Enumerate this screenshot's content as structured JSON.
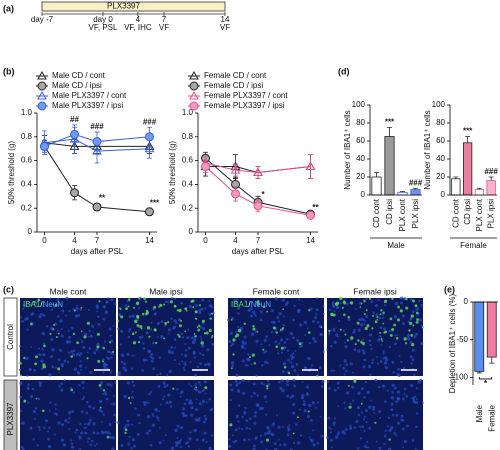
{
  "timeline": {
    "label": "(a)",
    "drug": "PLX3397",
    "range": [
      -7,
      14
    ],
    "ticks": [
      {
        "value": -7,
        "label": "day -7"
      },
      {
        "value": 0,
        "label": "day 0"
      },
      4,
      7,
      14
    ],
    "events": [
      {
        "day": 0,
        "text": "VF, PSL"
      },
      {
        "day": 4,
        "text": "VF, IHC"
      },
      {
        "day": 7,
        "text": "VF"
      },
      {
        "day": 14,
        "text": "VF"
      }
    ]
  },
  "chart_data": [
    {
      "type": "line",
      "panel": "(b)",
      "ylabel": "50% threshold (g)",
      "xlabel": "days after PSL",
      "x": [
        0,
        4,
        7,
        14
      ],
      "xlim": [
        -1,
        15
      ],
      "xticks": [
        0,
        4,
        7,
        14
      ],
      "ylim": [
        0,
        1
      ],
      "yticks": [
        0,
        0.2,
        0.4,
        0.6,
        0.8,
        {
          "value": 1,
          "label": "1.0"
        }
      ],
      "series": [
        {
          "name": "Male CD / cont",
          "marker": "triangle",
          "color": "#222222",
          "fill": "none",
          "values": [
            0.75,
            0.72,
            0.72,
            0.72
          ],
          "errors": [
            0.06,
            0.06,
            0.06,
            0.06
          ]
        },
        {
          "name": "Male CD / ipsi",
          "marker": "circle",
          "color": "#222222",
          "fill": "#a6a6a6",
          "values": [
            0.72,
            0.33,
            0.21,
            0.17
          ],
          "errors": [
            0.05,
            0.06,
            0.03,
            0.03
          ]
        },
        {
          "name": "Male PLX3397 / cont",
          "marker": "triangle",
          "color": "#3a5fd9",
          "fill": "none",
          "values": [
            0.75,
            0.78,
            0.68,
            0.7
          ],
          "errors": [
            0.1,
            0.12,
            0.1,
            0.08
          ]
        },
        {
          "name": "Male PLX3397 / ipsi",
          "marker": "circle",
          "color": "#3a5fd9",
          "fill": "#6f9bf0",
          "values": [
            0.72,
            0.82,
            0.76,
            0.8
          ],
          "errors": [
            0.05,
            0.06,
            0.08,
            0.08
          ]
        }
      ],
      "annotations": [
        {
          "text": "##",
          "x": 4
        },
        {
          "text": "###",
          "x": 7
        },
        {
          "text": "###",
          "x": 14
        },
        {
          "text": "**",
          "x": 7
        },
        {
          "text": "***",
          "x": 14
        }
      ]
    },
    {
      "type": "line",
      "ylabel": "50% threshold (g)",
      "xlabel": "days after PSL",
      "x": [
        0,
        4,
        7,
        14
      ],
      "xlim": [
        -1,
        15
      ],
      "xticks": [
        0,
        4,
        7,
        14
      ],
      "ylim": [
        0,
        1
      ],
      "yticks": [
        0,
        0.2,
        0.4,
        0.6,
        0.8,
        {
          "value": 1,
          "label": "1.0"
        }
      ],
      "series": [
        {
          "name": "Female CD / cont",
          "marker": "triangle",
          "color": "#222222",
          "fill": "none",
          "values": [
            0.55,
            0.55,
            0.5,
            0.55
          ],
          "errors": [
            0.08,
            0.1,
            0.05,
            0.1
          ]
        },
        {
          "name": "Female CD / ipsi",
          "marker": "circle",
          "color": "#222222",
          "fill": "#a6a6a6",
          "values": [
            0.62,
            0.4,
            0.25,
            0.15
          ],
          "errors": [
            0.05,
            0.06,
            0.05,
            0.02
          ]
        },
        {
          "name": "Female PLX3397 / cont",
          "marker": "triangle",
          "color": "#e0508a",
          "fill": "none",
          "values": [
            0.58,
            0.52,
            0.5,
            0.55
          ],
          "errors": [
            0.06,
            0.05,
            0.05,
            0.1
          ]
        },
        {
          "name": "Female PLX3397 / ipsi",
          "marker": "circle",
          "color": "#e0508a",
          "fill": "#f29bbb",
          "values": [
            0.55,
            0.32,
            0.22,
            0.14
          ],
          "errors": [
            0.05,
            0.06,
            0.05,
            0.02
          ]
        }
      ],
      "annotations": [
        {
          "text": "*",
          "x": 7
        },
        {
          "text": "**",
          "x": 14
        }
      ]
    },
    {
      "type": "bar",
      "panel": "(d)",
      "ylabel": "Number of IBA1⁺ cells",
      "group": "Male",
      "categories": [
        "CD cont",
        "CD ipsi",
        "PLX cont",
        "PLX ipsi"
      ],
      "values": [
        20,
        65,
        3,
        6
      ],
      "errors": [
        5,
        10,
        1,
        1.5
      ],
      "colors": [
        "#ffffff",
        "#999999",
        "#ffffff",
        "#6f8fe8"
      ],
      "edge_colors": [
        "#222222",
        "#222222",
        "#3a5fd9",
        "#3a5fd9"
      ],
      "ylim": [
        0,
        100
      ],
      "yticks": [
        0,
        20,
        40,
        60,
        80,
        100
      ],
      "annotations": [
        {
          "text": "***",
          "category": 1
        },
        {
          "text": "###",
          "category": 3
        }
      ]
    },
    {
      "type": "bar",
      "ylabel": "Number of IBA1⁺ cells",
      "group": "Female",
      "categories": [
        "CD cont",
        "CD ipsi",
        "PLX cont",
        "PLX ipsi"
      ],
      "values": [
        18,
        58,
        6,
        16
      ],
      "errors": [
        2,
        7,
        1.5,
        4
      ],
      "colors": [
        "#ffffff",
        "#e87fa0",
        "#ffffff",
        "#f4b3c8"
      ],
      "edge_colors": [
        "#222222",
        "#222222",
        "#e0508a",
        "#e0508a"
      ],
      "ylim": [
        0,
        100
      ],
      "yticks": [
        0,
        20,
        40,
        60,
        80,
        100
      ],
      "annotations": [
        {
          "text": "***",
          "category": 1
        },
        {
          "text": "###",
          "category": 3
        }
      ]
    },
    {
      "type": "bar",
      "panel": "(e)",
      "ylabel": "Depletion of IBA1⁺ cells (%)",
      "categories": [
        "Male",
        "Female"
      ],
      "values": [
        -92,
        -73
      ],
      "errors": [
        2,
        8
      ],
      "colors": [
        "#5b8def",
        "#f07aa0"
      ],
      "edge_colors": [
        "#222222",
        "#222222"
      ],
      "ylim": [
        -110,
        0
      ],
      "yticks": [
        -100,
        -50,
        0
      ],
      "annotations": [
        {
          "text": "*",
          "categories": [
            0,
            1
          ]
        }
      ]
    }
  ],
  "micrographs": {
    "label": "(c)",
    "columns": [
      "Male cont",
      "Male ipsi",
      "Female cont",
      "Female ipsi"
    ],
    "rows": [
      "Control",
      "PLX3397"
    ],
    "stain_label": [
      "IBA1",
      "/",
      "NeuN"
    ]
  }
}
